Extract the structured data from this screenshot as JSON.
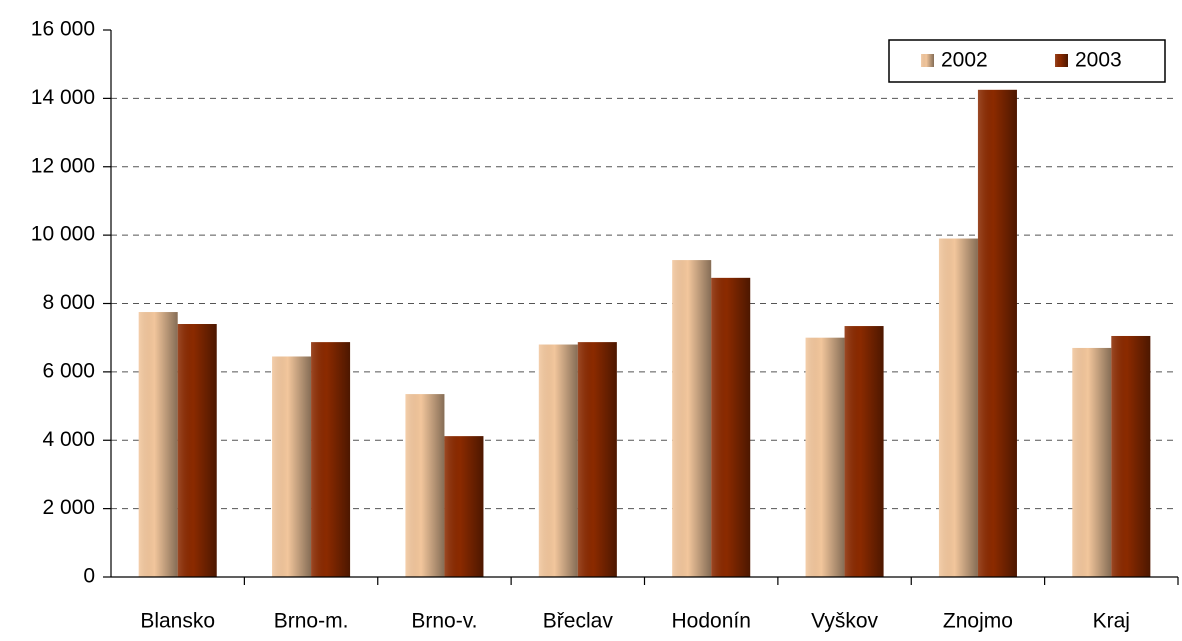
{
  "chart_data": {
    "type": "bar",
    "categories": [
      "Blansko",
      "Brno-m.",
      "Brno-v.",
      "Břeclav",
      "Hodonín",
      "Vyškov",
      "Znojmo",
      "Kraj"
    ],
    "series": [
      {
        "name": "2002",
        "color": "#f2c69c",
        "values": [
          7750,
          6450,
          5350,
          6800,
          9270,
          7000,
          9900,
          6700
        ]
      },
      {
        "name": "2003",
        "color": "#8b2a00",
        "values": [
          7400,
          6870,
          4120,
          6870,
          8750,
          7340,
          14250,
          7050
        ]
      }
    ],
    "ylim": [
      0,
      16000
    ],
    "yticks": [
      0,
      {
        "value": 2000,
        "label": "2 000"
      },
      {
        "value": 4000,
        "label": "4 000"
      },
      {
        "value": 6000,
        "label": "6 000"
      },
      {
        "value": 8000,
        "label": "8 000"
      },
      {
        "value": 10000,
        "label": "10 000"
      },
      {
        "value": 12000,
        "label": "12 000"
      },
      {
        "value": 14000,
        "label": "14 000"
      },
      {
        "value": 16000,
        "label": "16 000"
      }
    ],
    "grid": true,
    "legend": "upper right"
  }
}
